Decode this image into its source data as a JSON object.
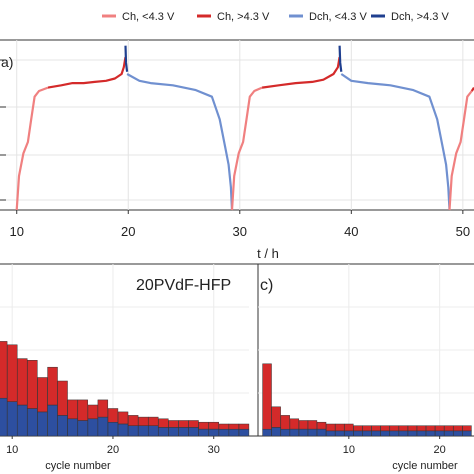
{
  "legend": {
    "entries": [
      {
        "label": "Ch, <4.3 V",
        "color": "#f08080"
      },
      {
        "label": "Ch, >4.3 V",
        "color": "#d42a2a"
      },
      {
        "label": "Dch, <4.3 V",
        "color": "#7090d0"
      },
      {
        "label": "Dch, >4.3 V",
        "color": "#1f3f8f"
      }
    ]
  },
  "panels": {
    "a": {
      "label": "a)"
    },
    "b": {
      "label": "20PVdF-HFP"
    },
    "c": {
      "label": "c)"
    }
  },
  "chart_data": [
    {
      "type": "line",
      "panel": "a",
      "xlabel": "t / h",
      "ylabel": "",
      "xlim": [
        8.5,
        51
      ],
      "ylim": [
        3.0,
        4.5
      ],
      "xticks": [
        10,
        20,
        30,
        40,
        50
      ],
      "xtick_labels": [
        "10",
        "20",
        "30",
        "40",
        "50"
      ],
      "grid": true,
      "series": [
        {
          "name": "Ch, <4.3 V",
          "color": "#f08080",
          "x": [
            10.0,
            10.2,
            10.6,
            11.0,
            11.3,
            11.6,
            12.0,
            12.8
          ],
          "y": [
            3.0,
            3.3,
            3.5,
            3.6,
            3.8,
            4.0,
            4.05,
            4.08
          ]
        },
        {
          "name": "Ch, >4.3 V",
          "color": "#d42a2a",
          "x": [
            12.8,
            14.0,
            15.0,
            16.0,
            17.0,
            18.0,
            18.8,
            19.4,
            19.6,
            19.75
          ],
          "y": [
            4.08,
            4.1,
            4.12,
            4.12,
            4.13,
            4.14,
            4.16,
            4.2,
            4.26,
            4.35
          ]
        },
        {
          "name": "Dch, >4.3 V",
          "color": "#1f3f8f",
          "x": [
            19.75,
            19.8,
            19.9
          ],
          "y": [
            4.45,
            4.3,
            4.22
          ]
        },
        {
          "name": "Dch, <4.3 V",
          "color": "#7090d0",
          "x": [
            19.9,
            21.0,
            22.0,
            24.0,
            26.0,
            27.5,
            28.2,
            28.7,
            29.0,
            29.2,
            29.3
          ],
          "y": [
            4.2,
            4.14,
            4.12,
            4.1,
            4.06,
            4.0,
            3.8,
            3.55,
            3.4,
            3.2,
            3.0
          ]
        },
        {
          "name": "Ch, <4.3 V",
          "color": "#f08080",
          "x": [
            29.3,
            29.5,
            29.9,
            30.3,
            30.6,
            30.9,
            31.3,
            32.0
          ],
          "y": [
            3.0,
            3.3,
            3.5,
            3.6,
            3.8,
            4.0,
            4.05,
            4.08
          ]
        },
        {
          "name": "Ch, >4.3 V",
          "color": "#d42a2a",
          "x": [
            32.0,
            33.5,
            35.0,
            36.5,
            37.5,
            38.4,
            38.8,
            38.95
          ],
          "y": [
            4.08,
            4.1,
            4.12,
            4.13,
            4.15,
            4.2,
            4.26,
            4.35
          ]
        },
        {
          "name": "Dch, >4.3 V",
          "color": "#1f3f8f",
          "x": [
            38.95,
            39.0,
            39.1
          ],
          "y": [
            4.45,
            4.3,
            4.22
          ]
        },
        {
          "name": "Dch, <4.3 V",
          "color": "#7090d0",
          "x": [
            39.1,
            40.0,
            41.5,
            43.5,
            45.5,
            47.0,
            47.7,
            48.2,
            48.5,
            48.7,
            48.8
          ],
          "y": [
            4.2,
            4.14,
            4.12,
            4.1,
            4.06,
            4.0,
            3.8,
            3.55,
            3.4,
            3.2,
            3.0
          ]
        },
        {
          "name": "Ch, <4.3 V",
          "color": "#f08080",
          "x": [
            48.8,
            49.0,
            49.4,
            49.8,
            50.1,
            50.4,
            50.8
          ],
          "y": [
            3.0,
            3.3,
            3.5,
            3.6,
            3.8,
            4.0,
            4.05
          ]
        },
        {
          "name": "Ch, >4.3 V",
          "color": "#d42a2a",
          "x": [
            50.8,
            51.0
          ],
          "y": [
            4.05,
            4.08
          ]
        }
      ]
    },
    {
      "type": "bar",
      "stacked": true,
      "panel": "b",
      "title": "20PVdF-HFP",
      "xlabel": "cycle number",
      "xlim": [
        7.5,
        33.5
      ],
      "ylim": [
        0,
        1.0
      ],
      "xticks": [
        10,
        20,
        30
      ],
      "xtick_labels": [
        "10",
        "20",
        "30"
      ],
      "grid": true,
      "categories": [
        8,
        9,
        10,
        11,
        12,
        13,
        14,
        15,
        16,
        17,
        18,
        19,
        20,
        21,
        22,
        23,
        24,
        25,
        26,
        27,
        28,
        29,
        30,
        31,
        32,
        33
      ],
      "series": [
        {
          "name": "Dch, <4.3 V",
          "color": "#2d4fa0",
          "values": [
            0.24,
            0.22,
            0.2,
            0.18,
            0.16,
            0.14,
            0.18,
            0.12,
            0.1,
            0.09,
            0.1,
            0.11,
            0.08,
            0.07,
            0.06,
            0.06,
            0.06,
            0.05,
            0.05,
            0.05,
            0.05,
            0.04,
            0.04,
            0.04,
            0.04,
            0.04
          ]
        },
        {
          "name": "Ch, >4.3 V",
          "color": "#d42a2a",
          "values": [
            0.34,
            0.33,
            0.33,
            0.27,
            0.28,
            0.2,
            0.22,
            0.2,
            0.11,
            0.12,
            0.08,
            0.1,
            0.08,
            0.07,
            0.06,
            0.05,
            0.05,
            0.05,
            0.04,
            0.04,
            0.04,
            0.04,
            0.04,
            0.03,
            0.03,
            0.03
          ]
        }
      ]
    },
    {
      "type": "bar",
      "stacked": true,
      "panel": "c",
      "xlabel": "cycle number",
      "xlim": [
        0,
        24
      ],
      "ylim": [
        0,
        1.0
      ],
      "xticks": [
        10,
        20
      ],
      "xtick_labels": [
        "10",
        "20"
      ],
      "grid": true,
      "categories": [
        1,
        2,
        3,
        4,
        5,
        6,
        7,
        8,
        9,
        10,
        11,
        12,
        13,
        14,
        15,
        16,
        17,
        18,
        19,
        20,
        21,
        22,
        23
      ],
      "series": [
        {
          "name": "Dch, <4.3 V",
          "color": "#2d4fa0",
          "values": [
            0.04,
            0.05,
            0.04,
            0.04,
            0.04,
            0.04,
            0.04,
            0.03,
            0.03,
            0.03,
            0.03,
            0.03,
            0.03,
            0.03,
            0.03,
            0.03,
            0.03,
            0.03,
            0.03,
            0.03,
            0.03,
            0.03,
            0.03
          ]
        },
        {
          "name": "Ch, >4.3 V",
          "color": "#d42a2a",
          "values": [
            0.38,
            0.12,
            0.08,
            0.06,
            0.05,
            0.05,
            0.04,
            0.04,
            0.04,
            0.04,
            0.03,
            0.03,
            0.03,
            0.03,
            0.03,
            0.03,
            0.03,
            0.03,
            0.03,
            0.03,
            0.03,
            0.03,
            0.03
          ]
        }
      ]
    }
  ]
}
